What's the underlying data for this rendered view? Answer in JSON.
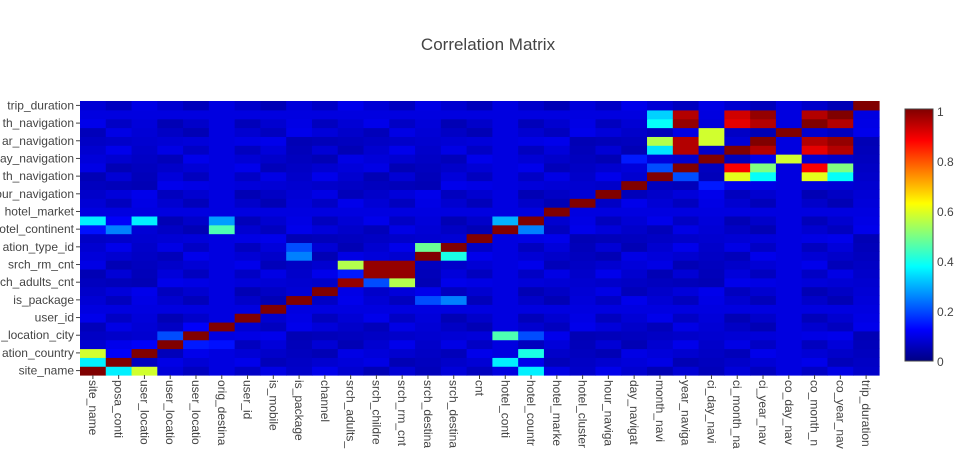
{
  "chart_data": {
    "type": "heatmap",
    "title": "Correlation Matrix",
    "colorscale": "Jet",
    "zrange": [
      0,
      1
    ],
    "colorbar_ticks": [
      "0",
      "0.2",
      "0.4",
      "0.6",
      "0.8",
      "1"
    ],
    "x_labels": [
      "site_name",
      "posa_conti",
      "user_locatio",
      "user_locatio",
      "user_locatio",
      "orig_destina",
      "user_id",
      "is_mobile",
      "is_package",
      "channel",
      "srch_adults_",
      "srch_childre",
      "srch_rm_cnt",
      "srch_destina",
      "srch_destina",
      "cnt",
      "hotel_conti",
      "hotel_countr",
      "hotel_marke",
      "hotel_cluster",
      "hour_naviga",
      "day_navigat",
      "month_navi",
      "year_naviga",
      "ci_day_navi",
      "ci_month_na",
      "ci_year_nav",
      "co_day_nav",
      "co_month_n",
      "co_year_nav",
      "trip_duration"
    ],
    "y_labels": [
      "site_name",
      "ation_country",
      "_location_city",
      "user_id",
      "is_package",
      "ch_adults_cnt",
      "srch_rm_cnt",
      "ation_type_id",
      "otel_continent",
      "hotel_market",
      "our_navigation",
      "th_navigation",
      "ay_navigation",
      "ar_navigation",
      "th_navigation",
      "trip_duration"
    ],
    "default_value": 0.05,
    "cells": [
      {
        "r": 0,
        "c": 0,
        "v": 1.0
      },
      {
        "r": 0,
        "c": 1,
        "v": 0.36
      },
      {
        "r": 0,
        "c": 2,
        "v": 0.58
      },
      {
        "r": 0,
        "c": 17,
        "v": 0.36
      },
      {
        "r": 1,
        "c": 0,
        "v": 0.36
      },
      {
        "r": 1,
        "c": 1,
        "v": 1.0
      },
      {
        "r": 1,
        "c": 16,
        "v": 0.36
      },
      {
        "r": 1,
        "c": 3,
        "v": 0.1
      },
      {
        "r": 2,
        "c": 0,
        "v": 0.58
      },
      {
        "r": 2,
        "c": 1,
        "v": 0.12
      },
      {
        "r": 2,
        "c": 2,
        "v": 1.0
      },
      {
        "r": 2,
        "c": 17,
        "v": 0.4
      },
      {
        "r": 3,
        "c": 2,
        "v": 0.12
      },
      {
        "r": 3,
        "c": 3,
        "v": 1.0
      },
      {
        "r": 3,
        "c": 4,
        "v": 0.15
      },
      {
        "r": 3,
        "c": 5,
        "v": 0.14
      },
      {
        "r": 4,
        "c": 3,
        "v": 0.2
      },
      {
        "r": 4,
        "c": 4,
        "v": 1.0
      },
      {
        "r": 4,
        "c": 16,
        "v": 0.45
      },
      {
        "r": 4,
        "c": 17,
        "v": 0.2
      },
      {
        "r": 5,
        "c": 4,
        "v": 0.12
      },
      {
        "r": 5,
        "c": 5,
        "v": 1.0
      },
      {
        "r": 6,
        "c": 6,
        "v": 1.0
      },
      {
        "r": 7,
        "c": 7,
        "v": 1.0
      },
      {
        "r": 8,
        "c": 8,
        "v": 1.0
      },
      {
        "r": 8,
        "c": 13,
        "v": 0.2
      },
      {
        "r": 8,
        "c": 14,
        "v": 0.25
      },
      {
        "r": 9,
        "c": 9,
        "v": 1.0
      },
      {
        "r": 9,
        "c": 10,
        "v": 0.1
      },
      {
        "r": 10,
        "c": 10,
        "v": 0.98
      },
      {
        "r": 10,
        "c": 11,
        "v": 0.2
      },
      {
        "r": 10,
        "c": 12,
        "v": 0.55
      },
      {
        "r": 11,
        "c": 10,
        "v": 0.15
      },
      {
        "r": 11,
        "c": 11,
        "v": 0.98
      },
      {
        "r": 11,
        "c": 12,
        "v": 0.98
      },
      {
        "r": 12,
        "c": 10,
        "v": 0.55
      },
      {
        "r": 12,
        "c": 11,
        "v": 0.98
      },
      {
        "r": 12,
        "c": 12,
        "v": 0.98
      },
      {
        "r": 13,
        "c": 8,
        "v": 0.25
      },
      {
        "r": 13,
        "c": 13,
        "v": 1.0
      },
      {
        "r": 13,
        "c": 14,
        "v": 0.4
      },
      {
        "r": 14,
        "c": 8,
        "v": 0.2
      },
      {
        "r": 14,
        "c": 13,
        "v": 0.48
      },
      {
        "r": 14,
        "c": 14,
        "v": 1.0
      },
      {
        "r": 15,
        "c": 15,
        "v": 1.0
      },
      {
        "r": 16,
        "c": 0,
        "v": 0.14
      },
      {
        "r": 16,
        "c": 1,
        "v": 0.25
      },
      {
        "r": 16,
        "c": 5,
        "v": 0.45
      },
      {
        "r": 16,
        "c": 16,
        "v": 1.0
      },
      {
        "r": 16,
        "c": 17,
        "v": 0.25
      },
      {
        "r": 17,
        "c": 0,
        "v": 0.36
      },
      {
        "r": 17,
        "c": 1,
        "v": 0.12
      },
      {
        "r": 17,
        "c": 2,
        "v": 0.36
      },
      {
        "r": 17,
        "c": 5,
        "v": 0.28
      },
      {
        "r": 17,
        "c": 16,
        "v": 0.3
      },
      {
        "r": 17,
        "c": 17,
        "v": 1.0
      },
      {
        "r": 18,
        "c": 18,
        "v": 1.0
      },
      {
        "r": 19,
        "c": 19,
        "v": 1.0
      },
      {
        "r": 20,
        "c": 20,
        "v": 1.0
      },
      {
        "r": 21,
        "c": 21,
        "v": 1.0
      },
      {
        "r": 21,
        "c": 24,
        "v": 0.15
      },
      {
        "r": 22,
        "c": 22,
        "v": 1.0
      },
      {
        "r": 22,
        "c": 23,
        "v": 0.2
      },
      {
        "r": 22,
        "c": 25,
        "v": 0.6
      },
      {
        "r": 22,
        "c": 26,
        "v": 0.38
      },
      {
        "r": 22,
        "c": 28,
        "v": 0.6
      },
      {
        "r": 22,
        "c": 29,
        "v": 0.38
      },
      {
        "r": 23,
        "c": 22,
        "v": 0.2
      },
      {
        "r": 23,
        "c": 23,
        "v": 1.0
      },
      {
        "r": 23,
        "c": 25,
        "v": 0.88
      },
      {
        "r": 23,
        "c": 26,
        "v": 0.5
      },
      {
        "r": 23,
        "c": 28,
        "v": 0.88
      },
      {
        "r": 23,
        "c": 29,
        "v": 0.5
      },
      {
        "r": 24,
        "c": 21,
        "v": 0.15
      },
      {
        "r": 24,
        "c": 24,
        "v": 1.0
      },
      {
        "r": 24,
        "c": 27,
        "v": 0.58
      },
      {
        "r": 25,
        "c": 22,
        "v": 0.35
      },
      {
        "r": 25,
        "c": 23,
        "v": 0.95
      },
      {
        "r": 25,
        "c": 25,
        "v": 1.0
      },
      {
        "r": 25,
        "c": 26,
        "v": 0.95
      },
      {
        "r": 25,
        "c": 28,
        "v": 0.9
      },
      {
        "r": 25,
        "c": 29,
        "v": 0.95
      },
      {
        "r": 26,
        "c": 22,
        "v": 0.55
      },
      {
        "r": 26,
        "c": 23,
        "v": 0.95
      },
      {
        "r": 26,
        "c": 24,
        "v": 0.58
      },
      {
        "r": 26,
        "c": 26,
        "v": 1.0
      },
      {
        "r": 26,
        "c": 28,
        "v": 0.95
      },
      {
        "r": 26,
        "c": 29,
        "v": 0.98
      },
      {
        "r": 27,
        "c": 24,
        "v": 0.58
      },
      {
        "r": 27,
        "c": 27,
        "v": 1.0
      },
      {
        "r": 28,
        "c": 22,
        "v": 0.38
      },
      {
        "r": 28,
        "c": 23,
        "v": 0.98
      },
      {
        "r": 28,
        "c": 25,
        "v": 0.9
      },
      {
        "r": 28,
        "c": 26,
        "v": 0.95
      },
      {
        "r": 28,
        "c": 28,
        "v": 1.0
      },
      {
        "r": 28,
        "c": 29,
        "v": 0.95
      },
      {
        "r": 29,
        "c": 22,
        "v": 0.33
      },
      {
        "r": 29,
        "c": 23,
        "v": 0.95
      },
      {
        "r": 29,
        "c": 25,
        "v": 0.92
      },
      {
        "r": 29,
        "c": 26,
        "v": 0.98
      },
      {
        "r": 29,
        "c": 28,
        "v": 0.95
      },
      {
        "r": 29,
        "c": 29,
        "v": 1.0
      },
      {
        "r": 30,
        "c": 30,
        "v": 1.0
      }
    ]
  }
}
